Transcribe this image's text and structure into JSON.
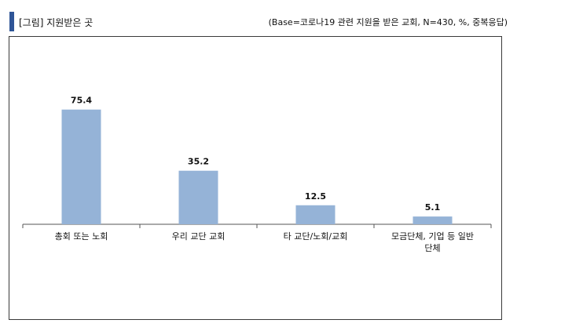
{
  "header": {
    "title": "[그림] 지원받은 곳",
    "base_note": "(Base=코로나19 관련 지원을 받은 교회, N=430, %, 중복응답)"
  },
  "colors": {
    "bar": "#95b3d7",
    "accent": "#2f5597"
  },
  "chart_data": {
    "type": "bar",
    "categories": [
      [
        "총회 또는 노회"
      ],
      [
        "우리 교단 교회"
      ],
      [
        "타 교단/노회/교회"
      ],
      [
        "모금단체, 기업 등 일반",
        "단체"
      ]
    ],
    "values": [
      75.4,
      35.2,
      12.5,
      5.1
    ],
    "value_labels": [
      "75.4",
      "35.2",
      "12.5",
      "5.1"
    ],
    "ylim": [
      0,
      100
    ],
    "grid": false,
    "legend": "none"
  }
}
